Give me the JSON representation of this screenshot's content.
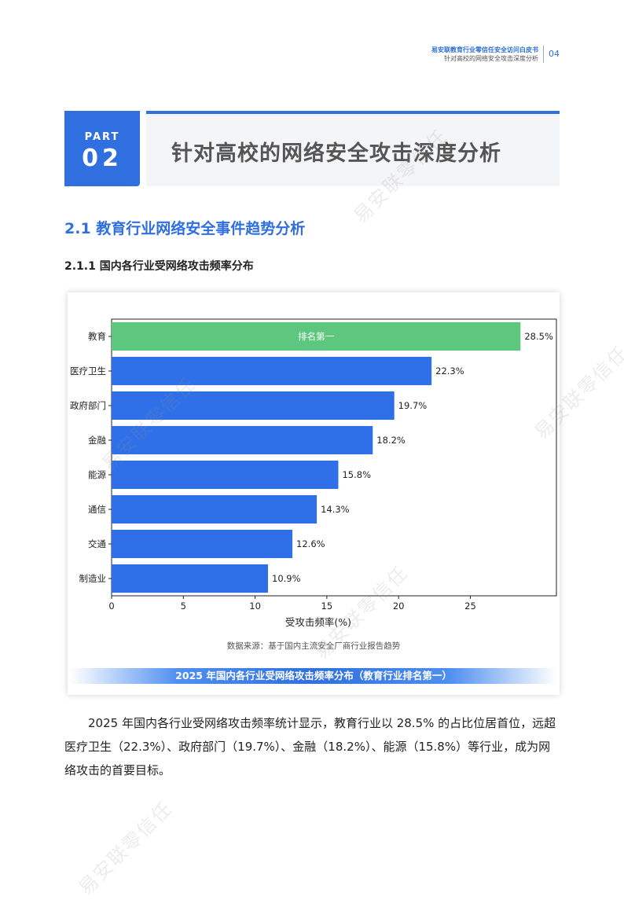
{
  "header": {
    "line1": "易安联教育行业零信任安全访问白皮书",
    "line2": "针对高校的网络安全攻击深度分析",
    "page_number": "04"
  },
  "part": {
    "label": "PART",
    "number": "02"
  },
  "chapter_title": "针对高校的网络安全攻击深度分析",
  "section_title": "2.1 教育行业网络安全事件趋势分析",
  "subsection_title": "2.1.1  国内各行业受网络攻击频率分布",
  "figure": {
    "source_note": "数据来源：基于国内主流安全厂商行业报告趋势",
    "caption": "2025 年国内各行业受网络攻击频率分布（教育行业排名第一）"
  },
  "chart_data": {
    "type": "bar",
    "orientation": "horizontal",
    "categories": [
      "教育",
      "医疗卫生",
      "政府部门",
      "金融",
      "能源",
      "通信",
      "交通",
      "制造业"
    ],
    "values": [
      28.5,
      22.3,
      19.7,
      18.2,
      15.8,
      14.3,
      12.6,
      10.9
    ],
    "value_labels": [
      "28.5%",
      "22.3%",
      "19.7%",
      "18.2%",
      "15.8%",
      "14.3%",
      "12.6%",
      "10.9%"
    ],
    "highlight_label": "排名第一",
    "xlabel": "受攻击频率(%)",
    "ylabel": "",
    "xlim": [
      0,
      31
    ],
    "xticks": [
      0,
      5,
      10,
      15,
      20,
      25
    ],
    "grid": false,
    "colors": {
      "highlight": "#5ec77f",
      "default": "#2f6fe8"
    }
  },
  "body_text": "2025 年国内各行业受网络攻击频率统计显示，教育行业以 28.5% 的占比位居首位，远超医疗卫生（22.3%）、政府部门（19.7%）、金融（18.2%）、能源（15.8%）等行业，成为网络攻击的首要目标。",
  "watermark": "易安联零信任",
  "colors": {
    "accent": "#2f6fe0",
    "title_bar_bg": "#f4f5f7"
  }
}
